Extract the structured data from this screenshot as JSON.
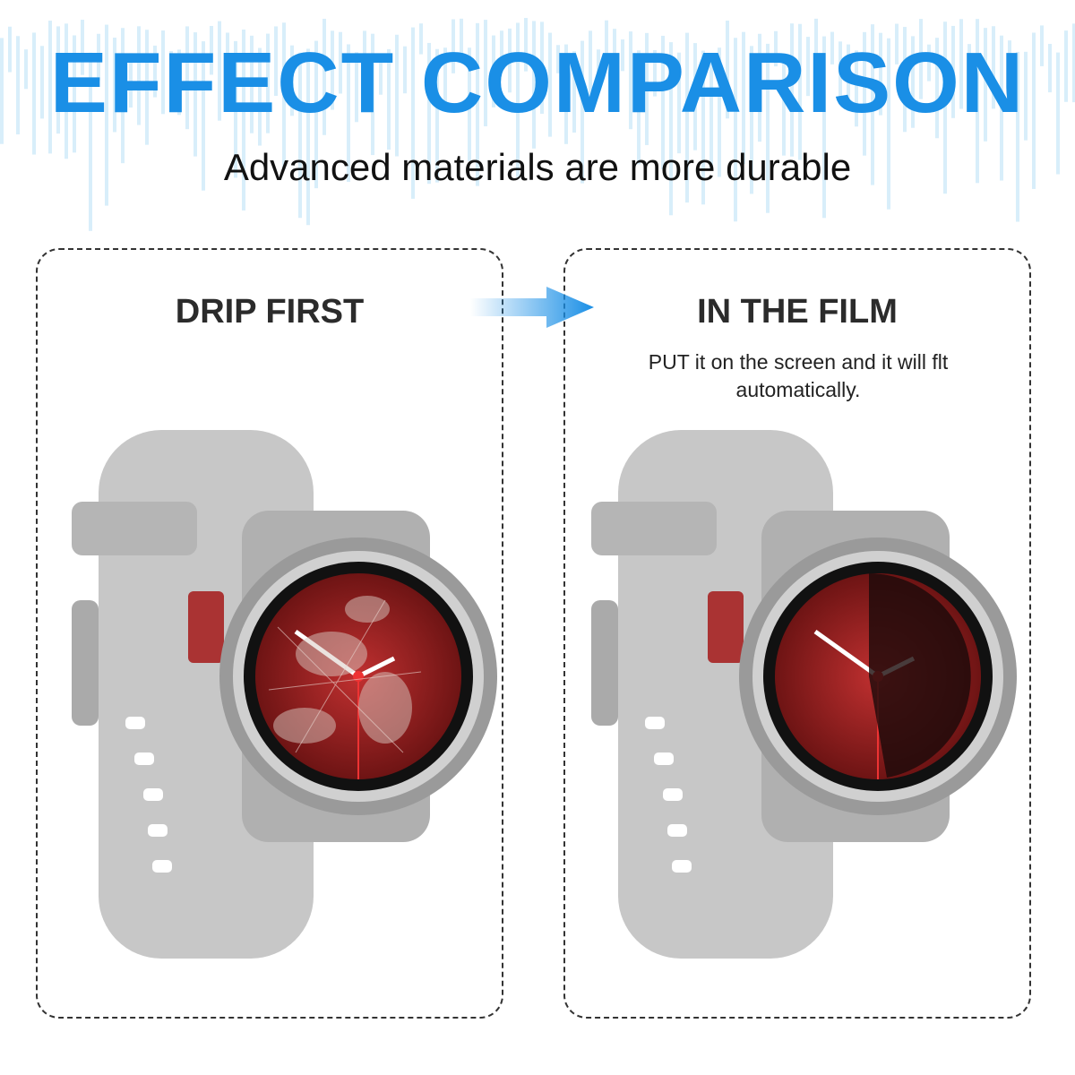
{
  "header": {
    "title": "EFFECT COMPARISON",
    "subtitle": "Advanced materials are more durable"
  },
  "panels": [
    {
      "title": "DRIP FIRST",
      "description": "",
      "screen_state": "dirty-scratched"
    },
    {
      "title": "IN THE FILM",
      "description": "PUT it on the screen and it will flt automatically.",
      "screen_state": "clean-with-film"
    }
  ],
  "colors": {
    "accent": "#1a8fe6",
    "dial": "#8e1c1c",
    "strap": "#c4c4c4"
  },
  "icons": {
    "arrow": "arrow-right-icon"
  }
}
